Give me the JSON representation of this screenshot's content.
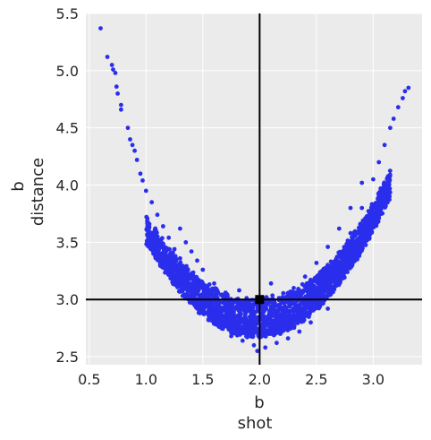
{
  "chart_data": {
    "type": "scatter",
    "xlabel": [
      "b",
      "shot"
    ],
    "ylabel": [
      "b",
      "distance"
    ],
    "xlim": [
      0.47,
      3.43
    ],
    "ylim": [
      2.43,
      5.5
    ],
    "xticks": [
      "0.5",
      "1.0",
      "1.5",
      "2.0",
      "2.5",
      "3.0"
    ],
    "xtick_values": [
      0.5,
      1.0,
      1.5,
      2.0,
      2.5,
      3.0
    ],
    "yticks": [
      "2.5",
      "3.0",
      "3.5",
      "4.0",
      "4.5",
      "5.0",
      "5.5"
    ],
    "ytick_values": [
      2.5,
      3.0,
      3.5,
      4.0,
      4.5,
      5.0,
      5.5
    ],
    "grid": true,
    "reference_lines": {
      "x": 2.0,
      "y": 3.0
    },
    "reference_point": {
      "x": 2.0,
      "y": 3.0
    },
    "series_points": [
      [
        0.6,
        5.37
      ],
      [
        0.66,
        5.12
      ],
      [
        0.7,
        5.05
      ],
      [
        0.71,
        5.01
      ],
      [
        0.73,
        4.98
      ],
      [
        0.74,
        4.86
      ],
      [
        0.75,
        4.8
      ],
      [
        0.78,
        4.7
      ],
      [
        0.78,
        4.66
      ],
      [
        0.84,
        4.5
      ],
      [
        0.86,
        4.4
      ],
      [
        0.88,
        4.35
      ],
      [
        0.9,
        4.3
      ],
      [
        0.92,
        4.22
      ],
      [
        0.95,
        4.1
      ],
      [
        0.97,
        4.04
      ],
      [
        1.0,
        3.95
      ],
      [
        1.05,
        3.85
      ],
      [
        1.1,
        3.74
      ],
      [
        1.15,
        3.64
      ],
      [
        1.2,
        3.54
      ],
      [
        1.25,
        3.44
      ],
      [
        1.3,
        3.36
      ],
      [
        1.35,
        3.26
      ],
      [
        1.4,
        3.18
      ],
      [
        1.45,
        3.1
      ],
      [
        1.5,
        3.02
      ],
      [
        1.55,
        2.96
      ],
      [
        1.6,
        2.9
      ],
      [
        1.7,
        2.82
      ],
      [
        1.8,
        2.75
      ],
      [
        1.9,
        2.7
      ],
      [
        2.0,
        2.68
      ],
      [
        2.1,
        2.7
      ],
      [
        2.2,
        2.75
      ],
      [
        2.3,
        2.82
      ],
      [
        2.4,
        2.92
      ],
      [
        2.5,
        3.04
      ],
      [
        2.6,
        3.2
      ],
      [
        2.7,
        3.38
      ],
      [
        2.8,
        3.58
      ],
      [
        2.9,
        3.8
      ],
      [
        3.0,
        4.05
      ],
      [
        3.05,
        4.2
      ],
      [
        3.1,
        4.35
      ],
      [
        3.15,
        4.5
      ],
      [
        3.18,
        4.58
      ],
      [
        3.22,
        4.68
      ],
      [
        3.26,
        4.76
      ],
      [
        3.28,
        4.82
      ],
      [
        3.31,
        4.85
      ],
      [
        1.3,
        3.62
      ],
      [
        1.35,
        3.5
      ],
      [
        1.4,
        3.42
      ],
      [
        1.45,
        3.34
      ],
      [
        1.5,
        3.26
      ],
      [
        1.6,
        3.14
      ],
      [
        1.7,
        3.06
      ],
      [
        1.8,
        3.0
      ],
      [
        1.9,
        2.96
      ],
      [
        2.0,
        2.95
      ],
      [
        2.1,
        2.98
      ],
      [
        2.2,
        3.02
      ],
      [
        2.3,
        3.1
      ],
      [
        2.4,
        3.2
      ],
      [
        2.5,
        3.32
      ],
      [
        2.6,
        3.46
      ],
      [
        2.7,
        3.62
      ],
      [
        2.8,
        3.8
      ],
      [
        2.9,
        4.02
      ],
      [
        1.55,
        2.82
      ],
      [
        1.65,
        2.76
      ],
      [
        1.75,
        2.68
      ],
      [
        1.85,
        2.64
      ],
      [
        1.95,
        2.6
      ],
      [
        2.05,
        2.58
      ],
      [
        2.15,
        2.62
      ],
      [
        2.25,
        2.66
      ],
      [
        2.35,
        2.72
      ],
      [
        2.45,
        2.8
      ],
      [
        2.6,
        2.92
      ],
      [
        1.82,
        3.08
      ],
      [
        2.38,
        3.06
      ],
      [
        1.98,
        2.55
      ],
      [
        2.42,
        3.0
      ],
      [
        2.1,
        3.14
      ],
      [
        2.3,
        2.9
      ]
    ]
  }
}
